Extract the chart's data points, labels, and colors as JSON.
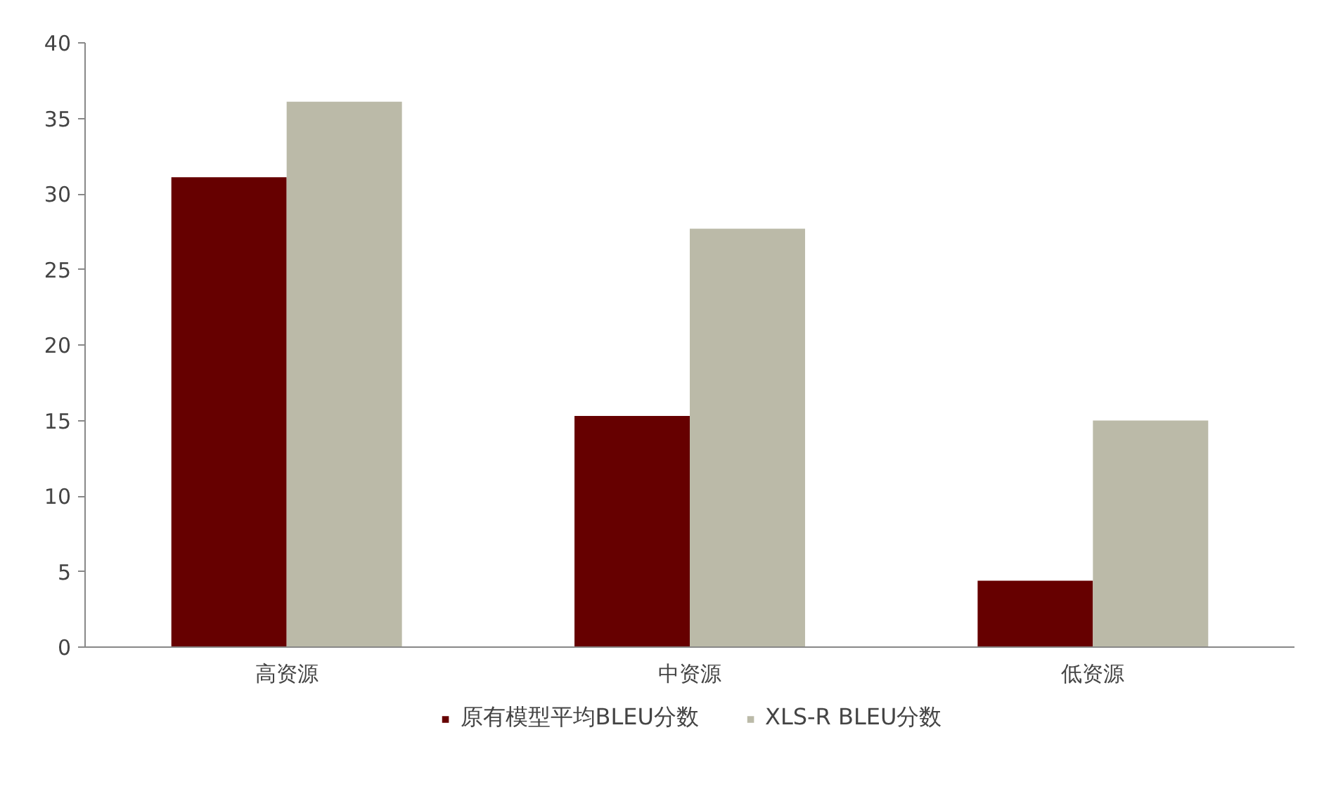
{
  "chart_data": {
    "type": "bar",
    "categories": [
      "高资源",
      "中资源",
      "低资源"
    ],
    "series": [
      {
        "name": "原有模型平均BLEU分数",
        "color": "#660000",
        "values": [
          31.1,
          15.3,
          4.4
        ]
      },
      {
        "name": "XLS-R BLEU分数",
        "color": "#bbbaa8",
        "values": [
          36.1,
          27.7,
          15.0
        ]
      }
    ],
    "ylim": [
      0,
      40
    ],
    "yticks": [
      0,
      5,
      10,
      15,
      20,
      25,
      30,
      35,
      40
    ],
    "grid": false,
    "legend": "bottom"
  }
}
